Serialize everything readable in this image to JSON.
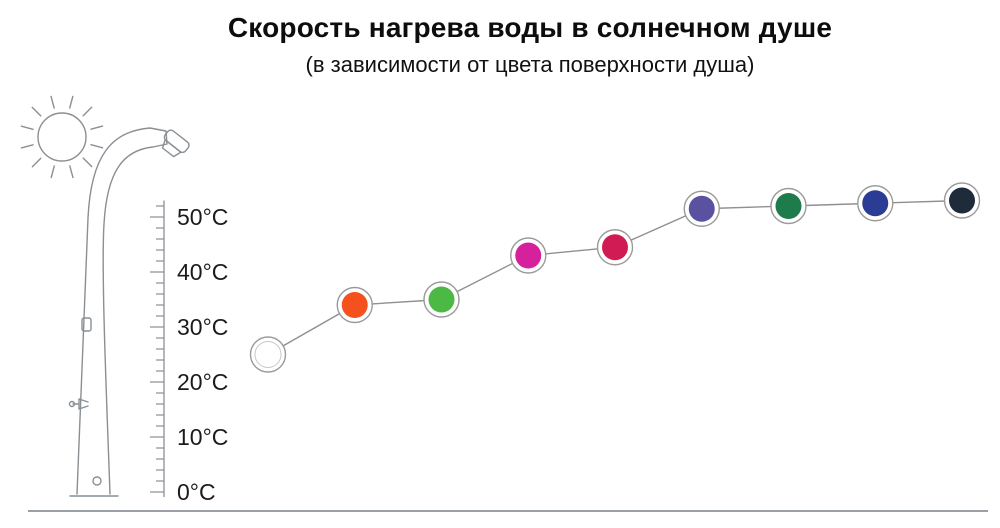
{
  "header": {
    "title": "Скорость нагрева воды в солнечном душе",
    "subtitle": "(в зависимости от цвета поверхности душа)"
  },
  "chart_data": {
    "type": "line",
    "title": "Скорость нагрева воды в солнечном душе",
    "subtitle": "(в зависимости от цвета поверхности душа)",
    "xlabel": "",
    "ylabel": "",
    "ylim": [
      0,
      55
    ],
    "yticks": [
      0,
      10,
      20,
      30,
      40,
      50
    ],
    "ytick_labels": [
      "0°C",
      "10°C",
      "20°C",
      "30°C",
      "40°C",
      "50°C"
    ],
    "grid": false,
    "legend": false,
    "categories": [
      "white",
      "orange",
      "green",
      "magenta",
      "crimson",
      "purple",
      "dark-green",
      "dark-blue",
      "dark-navy"
    ],
    "point_colors": [
      "#ffffff",
      "#f4511e",
      "#4bb944",
      "#d6219c",
      "#d11b54",
      "#5a51a0",
      "#1e7b4b",
      "#2b3c94",
      "#1d2b3a"
    ],
    "values_c": [
      25,
      34,
      35,
      43,
      44.5,
      51.5,
      52,
      52.5,
      53
    ],
    "line_color": "#909090",
    "ring_color": "#9a9a9a"
  }
}
